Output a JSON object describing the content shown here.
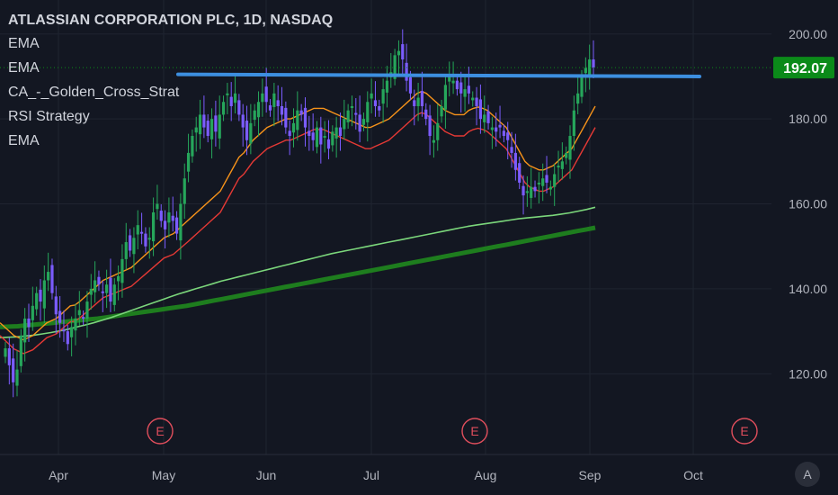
{
  "header": {
    "title": "ATLASSIAN CORPORATION PLC, 1D, NASDAQ",
    "indicators": [
      "EMA",
      "EMA",
      "CA_-_Golden_Cross_Strat",
      "RSI Strategy",
      "EMA"
    ]
  },
  "scale_mode_label": "A",
  "colors": {
    "background": "#131722",
    "up": "#26a65b",
    "down": "#7b5cff",
    "trendline": "#3d8fe0",
    "ema_fast": "#f7931a",
    "ema_mid": "#e53935",
    "ema_slow": "#7bd67b",
    "ema_long": "#1e7d1e",
    "price_label": "#0b8a19",
    "earnings": "#e04e5c"
  },
  "chart_data": {
    "type": "candlestick",
    "symbol": "ATLASSIAN CORPORATION PLC",
    "interval": "1D",
    "exchange": "NASDAQ",
    "x_ticks": [
      "Apr",
      "May",
      "Jun",
      "Jul",
      "Aug",
      "Sep",
      "Oct"
    ],
    "y_ticks": [
      "200.00",
      "180.00",
      "160.00",
      "140.00",
      "120.00"
    ],
    "ylim": [
      101,
      208
    ],
    "last_price": "192.07",
    "last_price_value": 192.07,
    "earnings_markers": [
      {
        "label": "E",
        "date": "May"
      },
      {
        "label": "E",
        "date": "Jul-end"
      },
      {
        "label": "E",
        "date": "Oct-end"
      }
    ],
    "trendline": {
      "start": 190.5,
      "end": 190.0
    },
    "grid": true,
    "close_series": [
      126,
      122,
      118,
      121,
      129,
      133,
      131,
      136,
      139,
      137,
      142,
      144,
      139,
      134,
      132,
      130,
      127,
      131,
      133,
      135,
      133,
      137,
      140,
      142,
      141,
      139,
      141,
      137,
      141,
      143,
      147,
      151,
      149,
      152,
      155,
      153,
      150,
      152,
      158,
      160,
      156,
      154,
      158,
      156,
      153,
      160,
      166,
      172,
      176,
      178,
      181,
      178,
      176,
      180,
      177,
      181,
      184,
      186,
      183,
      186,
      181,
      178,
      175,
      179,
      182,
      184,
      186,
      184,
      182,
      186,
      183,
      181,
      178,
      176,
      179,
      182,
      181,
      178,
      176,
      175,
      178,
      174,
      176,
      173,
      177,
      178,
      176,
      180,
      182,
      183,
      181,
      177,
      180,
      184,
      186,
      183,
      182,
      187,
      189,
      191,
      195,
      196,
      194,
      189,
      186,
      183,
      185,
      183,
      180,
      176,
      175,
      179,
      183,
      188,
      190,
      189,
      187,
      186,
      187,
      186,
      185,
      183,
      180,
      181,
      179,
      178,
      177,
      178,
      176,
      175,
      172,
      168,
      165,
      162,
      163,
      164,
      163,
      165,
      166,
      165,
      164,
      167,
      169,
      170,
      172,
      176,
      182,
      186,
      190,
      192,
      194,
      192.07
    ],
    "ema_fast": [
      132,
      131,
      130,
      129,
      128.5,
      128,
      128.5,
      129,
      130,
      131,
      132,
      132.5,
      133,
      134,
      135,
      136,
      136.2,
      137,
      138,
      139,
      140,
      141,
      142,
      142.5,
      143,
      143.5,
      144,
      144.5,
      145,
      146,
      147,
      148,
      149,
      150,
      151,
      152,
      152.5,
      153,
      154,
      155,
      156,
      157,
      158,
      159,
      160,
      161,
      162,
      163,
      165,
      167,
      169,
      171,
      172,
      173.5,
      175,
      176,
      177,
      178,
      178.5,
      179,
      179.5,
      180,
      180,
      180.5,
      181,
      181.5,
      182,
      182.5,
      182.5,
      182.5,
      182,
      181.5,
      181,
      180.5,
      180,
      179.5,
      179,
      178.5,
      178,
      178,
      178.5,
      179,
      179.5,
      180,
      181,
      182,
      183,
      184,
      185,
      186,
      186.5,
      186,
      185,
      184,
      183,
      182,
      181.5,
      181,
      181,
      181,
      182,
      182.5,
      182.8,
      182.5,
      182,
      181,
      180,
      179,
      178,
      176,
      174,
      172,
      170,
      169,
      168.5,
      168,
      168,
      168.5,
      169,
      170,
      171,
      172,
      173,
      175,
      177,
      179,
      181,
      183
    ],
    "ema_mid": [],
    "ema_slow": [
      128.5,
      128.6,
      128.7,
      128.9,
      129.1,
      129.4,
      129.7,
      130.1,
      130.5,
      131,
      131.5,
      132,
      132.6,
      133.2,
      133.9,
      134.6,
      135.3,
      136,
      136.7,
      137.4,
      138.1,
      138.8,
      139.4,
      140,
      140.6,
      141.2,
      141.8,
      142.3,
      142.8,
      143.3,
      143.8,
      144.3,
      144.8,
      145.3,
      145.8,
      146.3,
      146.8,
      147.3,
      147.8,
      148.3,
      148.7,
      149.1,
      149.5,
      149.9,
      150.3,
      150.7,
      151.1,
      151.5,
      151.9,
      152.3,
      152.7,
      153.1,
      153.5,
      153.9,
      154.3,
      154.7,
      155,
      155.3,
      155.6,
      155.9,
      156.2,
      156.5,
      156.7,
      156.9,
      157.1,
      157.3,
      157.6,
      157.9,
      158.3,
      158.7,
      159.2
    ],
    "ema_long": [
      131,
      131.1,
      131.2,
      131.4,
      131.6,
      131.8,
      132,
      132.2,
      132.4,
      132.6,
      132.8,
      133,
      133.3,
      133.6,
      133.9,
      134.2,
      134.5,
      134.8,
      135.1,
      135.4,
      135.7,
      136,
      136.4,
      136.8,
      137.2,
      137.6,
      138,
      138.4,
      138.8,
      139.2,
      139.6,
      140,
      140.4,
      140.8,
      141.2,
      141.6,
      142,
      142.4,
      142.8,
      143.2,
      143.6,
      144,
      144.4,
      144.8,
      145.2,
      145.6,
      146,
      146.4,
      146.8,
      147.2,
      147.6,
      148,
      148.4,
      148.8,
      149.2,
      149.6,
      150,
      150.4,
      150.8,
      151.2,
      151.6,
      152,
      152.4,
      152.8,
      153.2,
      153.6,
      154,
      154.4
    ]
  }
}
